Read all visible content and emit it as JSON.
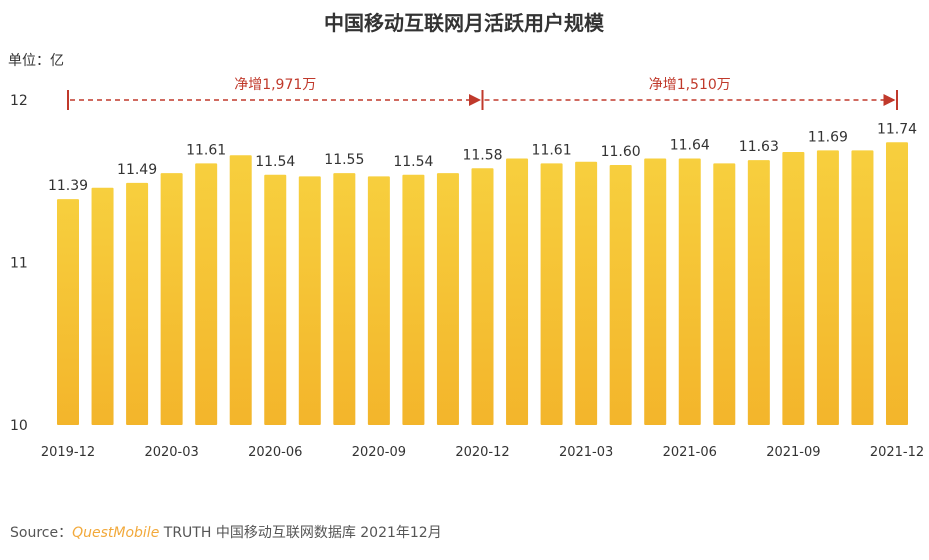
{
  "chart_data": {
    "type": "bar",
    "title": "中国移动互联网月活跃用户规模",
    "unit_label": "单位：亿",
    "ylim": [
      10,
      12
    ],
    "yticks": [
      "12",
      "11",
      "10"
    ],
    "categories": [
      "2019-12",
      "2020-01",
      "2020-02",
      "2020-03",
      "2020-04",
      "2020-05",
      "2020-06",
      "2020-07",
      "2020-08",
      "2020-09",
      "2020-10",
      "2020-11",
      "2020-12",
      "2021-01",
      "2021-02",
      "2021-03",
      "2021-04",
      "2021-05",
      "2021-06",
      "2021-07",
      "2021-08",
      "2021-09",
      "2021-10",
      "2021-11",
      "2021-12"
    ],
    "xtick_labels": [
      "2019-12",
      "2020-03",
      "2020-06",
      "2020-09",
      "2020-12",
      "2021-03",
      "2021-06",
      "2021-09",
      "2021-12"
    ],
    "values": [
      11.39,
      11.46,
      11.49,
      11.55,
      11.61,
      11.66,
      11.54,
      11.53,
      11.55,
      11.53,
      11.54,
      11.55,
      11.58,
      11.64,
      11.61,
      11.62,
      11.6,
      11.64,
      11.64,
      11.61,
      11.63,
      11.68,
      11.69,
      11.69,
      11.74
    ],
    "data_labels": [
      {
        "index": 0,
        "text": "11.39"
      },
      {
        "index": 2,
        "text": "11.49"
      },
      {
        "index": 4,
        "text": "11.61"
      },
      {
        "index": 6,
        "text": "11.54"
      },
      {
        "index": 8,
        "text": "11.55"
      },
      {
        "index": 10,
        "text": "11.54"
      },
      {
        "index": 12,
        "text": "11.58"
      },
      {
        "index": 14,
        "text": "11.61"
      },
      {
        "index": 16,
        "text": "11.60"
      },
      {
        "index": 18,
        "text": "11.64"
      },
      {
        "index": 20,
        "text": "11.63"
      },
      {
        "index": 22,
        "text": "11.69"
      },
      {
        "index": 24,
        "text": "11.74"
      }
    ],
    "annotations": [
      {
        "text": "净增1,971万",
        "from": "2019-12",
        "to": "2020-12"
      },
      {
        "text": "净增1,510万",
        "from": "2020-12",
        "to": "2021-12"
      }
    ],
    "bar_color": "#f6c533",
    "annotation_color": "#c0392b"
  },
  "source": {
    "prefix": "Source：",
    "brand": "QuestMobile",
    "rest": " TRUTH 中国移动互联网数据库 2021年12月"
  }
}
